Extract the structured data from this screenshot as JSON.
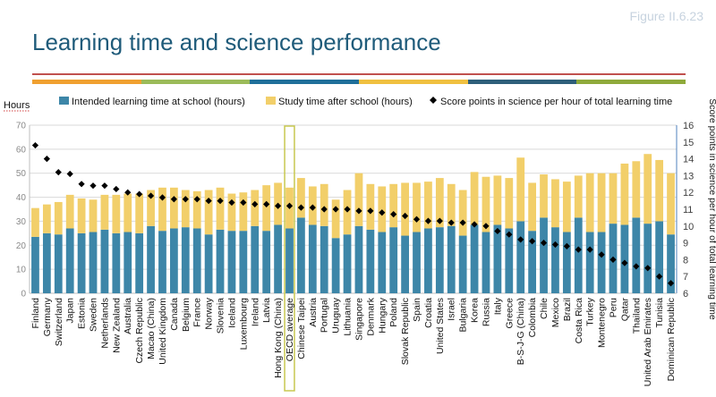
{
  "figure_label": "Figure II.6.23",
  "page_title": "Learning time and science performance",
  "rule_colors": [
    "#c0504d",
    "#f0a030",
    "#9bbb59",
    "#1f6f9a",
    "#f0c040",
    "#2e5f7a",
    "#8faa3b"
  ],
  "colors": {
    "school": "#3d86a8",
    "study": "#f2cf6a",
    "score": "#000000",
    "highlight": "#c8c850",
    "axis": "#4f81bd",
    "grid": "#d9d9d9"
  },
  "chart_data": {
    "type": "bar",
    "title": "",
    "ylabel_left": "Hours",
    "ylabel_right": "Score points in science per hour of total learning time",
    "ylim_left": [
      0,
      70
    ],
    "yticks_left": [
      0,
      10,
      20,
      30,
      40,
      50,
      60,
      70
    ],
    "ylim_right": [
      6,
      16
    ],
    "yticks_right": [
      6,
      7,
      8,
      9,
      10,
      11,
      12,
      13,
      14,
      15,
      16
    ],
    "highlight_category": "OECD average",
    "legend_position": "top",
    "grid": true,
    "categories": [
      "Finland",
      "Germany",
      "Switzerland",
      "Japan",
      "Estonia",
      "Sweden",
      "Netherlands",
      "New Zealand",
      "Australia",
      "Czech Republic",
      "Macao (China)",
      "United Kingdom",
      "Canada",
      "Belgium",
      "France",
      "Norway",
      "Slovenia",
      "Iceland",
      "Luxembourg",
      "Ireland",
      "Latvia",
      "Hong Kong (China)",
      "OECD average",
      "Chinese Taipei",
      "Austria",
      "Portugal",
      "Uruguay",
      "Lithuania",
      "Singapore",
      "Denmark",
      "Hungary",
      "Poland",
      "Slovak Republic",
      "Spain",
      "Croatia",
      "United States",
      "Israel",
      "Bulgaria",
      "Korea",
      "Russia",
      "Italy",
      "Greece",
      "B-S-J-G (China)",
      "Colombia",
      "Chile",
      "Mexico",
      "Brazil",
      "Costa Rica",
      "Turkey",
      "Montenegro",
      "Peru",
      "Qatar",
      "Thailand",
      "United Arab Emirates",
      "Tunisia",
      "Dominican Republic"
    ],
    "series": [
      {
        "name": "Intended learning time at school (hours)",
        "type": "bar",
        "axis": "left",
        "values": [
          23.5,
          25,
          24.5,
          27,
          25,
          25.5,
          26.5,
          25,
          25.5,
          25,
          28,
          26,
          27,
          27.5,
          27,
          24.5,
          26.5,
          26,
          26,
          28,
          26,
          28.5,
          27,
          31.5,
          28.5,
          28,
          23,
          24.5,
          28,
          26.5,
          25.5,
          27.5,
          24,
          25.5,
          27,
          27.5,
          28,
          24,
          28.5,
          25.5,
          28.5,
          27,
          30,
          26,
          31.5,
          27.5,
          25.5,
          31.5,
          25.5,
          25.5,
          29,
          28.5,
          31.5,
          29,
          30,
          24.5
        ]
      },
      {
        "name": "Study time after school (hours)",
        "type": "bar",
        "axis": "left",
        "values": [
          12,
          12,
          13.5,
          14,
          14.5,
          13.5,
          14.5,
          16,
          16,
          16.5,
          15,
          18,
          17,
          15.5,
          15.5,
          18.5,
          17.5,
          15.5,
          16,
          15,
          19,
          17.5,
          17,
          16.5,
          16,
          17.5,
          16,
          18.5,
          22,
          19,
          19,
          18,
          22,
          20.5,
          19.5,
          20.5,
          17.5,
          19,
          22,
          23,
          20.5,
          21,
          26.5,
          20,
          18,
          20,
          21,
          17.5,
          24.5,
          24.5,
          21,
          25.5,
          23.5,
          29,
          25.5,
          25.5
        ]
      },
      {
        "name": "Score points in science per hour of total learning time",
        "type": "scatter",
        "axis": "right",
        "values": [
          14.8,
          14.0,
          13.2,
          13.1,
          12.5,
          12.4,
          12.4,
          12.2,
          12.0,
          11.9,
          11.8,
          11.7,
          11.6,
          11.6,
          11.6,
          11.5,
          11.5,
          11.4,
          11.4,
          11.3,
          11.3,
          11.2,
          11.2,
          11.1,
          11.1,
          11.0,
          11.0,
          11.0,
          10.9,
          10.9,
          10.8,
          10.7,
          10.6,
          10.4,
          10.3,
          10.3,
          10.2,
          10.2,
          10.1,
          10.0,
          9.7,
          9.5,
          9.2,
          9.1,
          9.0,
          8.9,
          8.8,
          8.6,
          8.6,
          8.3,
          8.0,
          7.8,
          7.6,
          7.5,
          7.0,
          6.6
        ]
      }
    ]
  }
}
